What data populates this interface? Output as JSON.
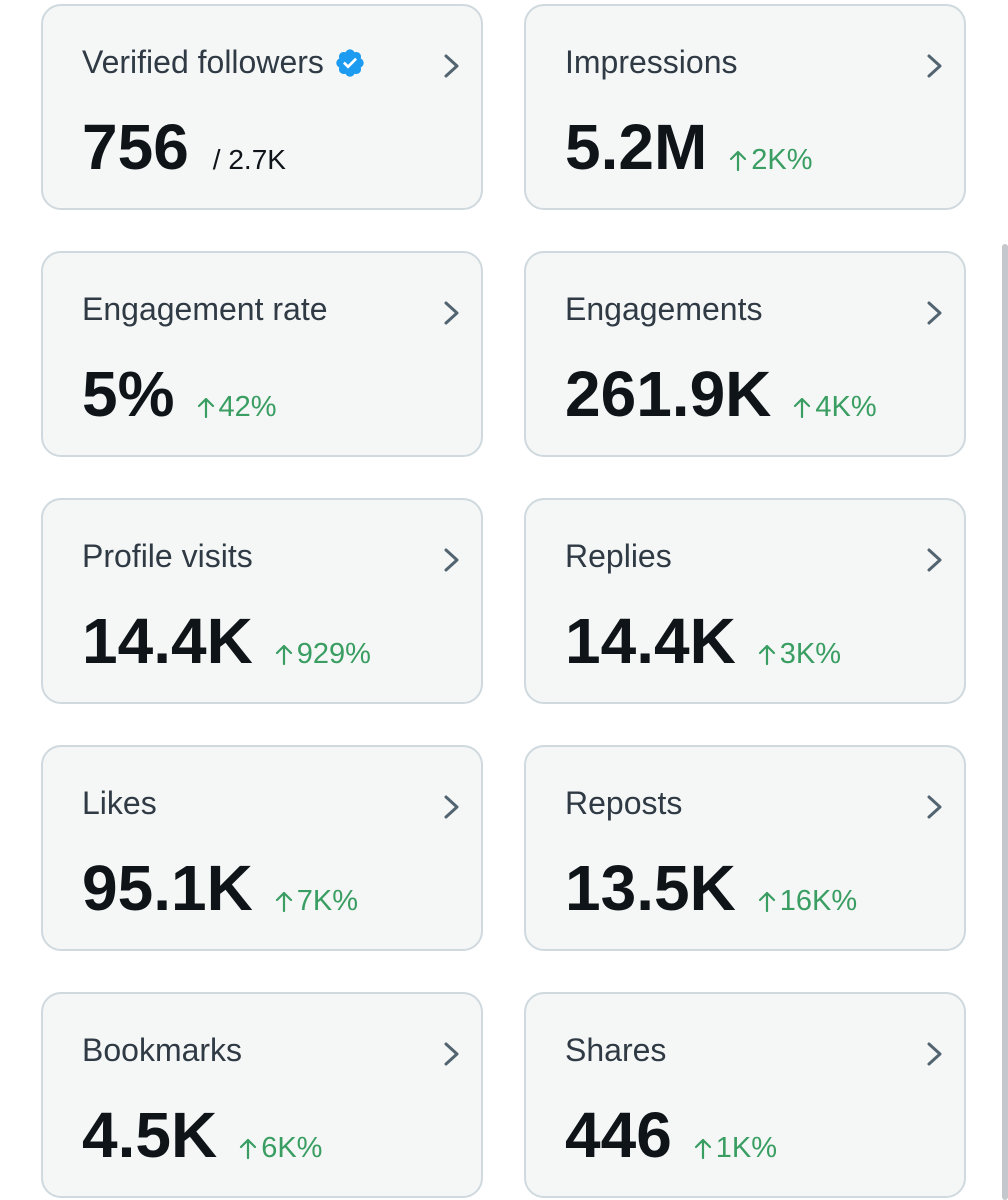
{
  "colors": {
    "positive": "#3a9e62",
    "verified_badge": "#1d9bf0",
    "card_bg": "#f5f7f7",
    "card_border": "#cfd9de"
  },
  "cards": [
    {
      "title": "Verified followers",
      "value": "756",
      "sub": "/ 2.7K",
      "change": ""
    },
    {
      "title": "Impressions",
      "value": "5.2M",
      "sub": "",
      "change": "2K%"
    },
    {
      "title": "Engagement rate",
      "value": "5%",
      "sub": "",
      "change": "42%"
    },
    {
      "title": "Engagements",
      "value": "261.9K",
      "sub": "",
      "change": "4K%"
    },
    {
      "title": "Profile visits",
      "value": "14.4K",
      "sub": "",
      "change": "929%"
    },
    {
      "title": "Replies",
      "value": "14.4K",
      "sub": "",
      "change": "3K%"
    },
    {
      "title": "Likes",
      "value": "95.1K",
      "sub": "",
      "change": "7K%"
    },
    {
      "title": "Reposts",
      "value": "13.5K",
      "sub": "",
      "change": "16K%"
    },
    {
      "title": "Bookmarks",
      "value": "4.5K",
      "sub": "",
      "change": "6K%"
    },
    {
      "title": "Shares",
      "value": "446",
      "sub": "",
      "change": "1K%"
    }
  ]
}
